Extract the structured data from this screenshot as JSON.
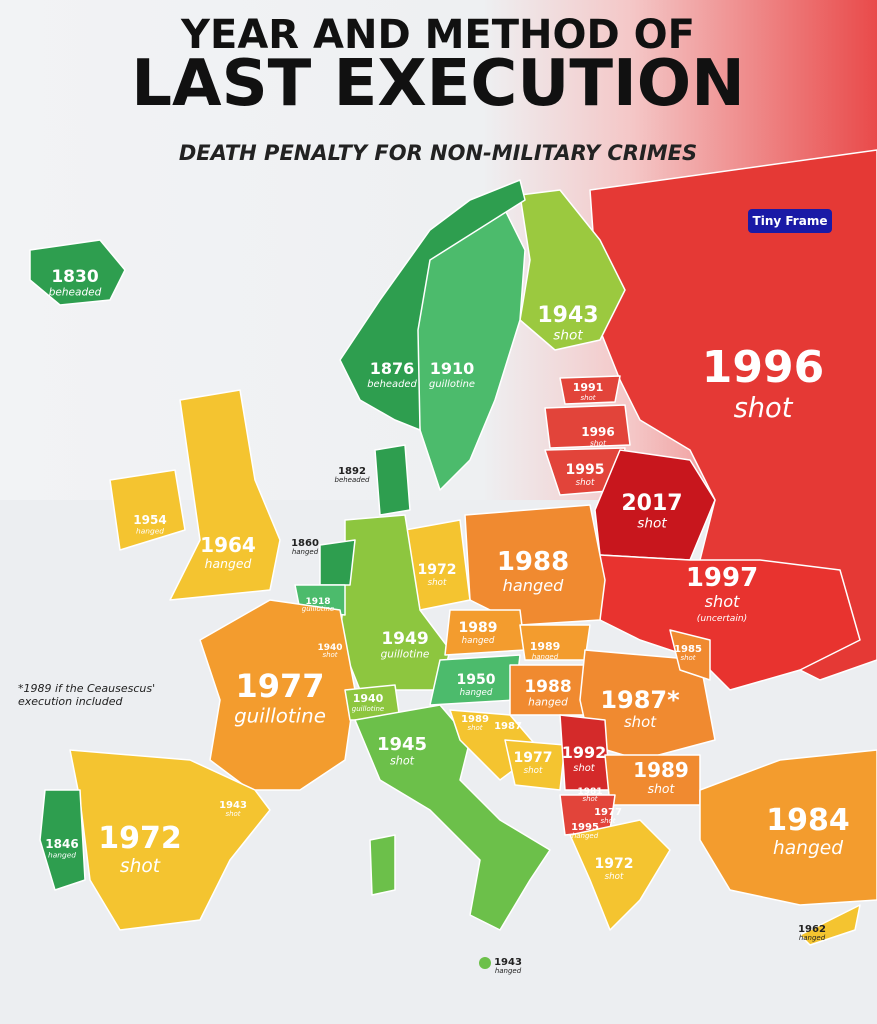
{
  "title_line1": "YEAR AND METHOD OF",
  "title_line2": "LAST EXECUTION",
  "subtitle": "DEATH PENALTY FOR NON-MILITARY CRIMES",
  "badge": "Tiny Frame",
  "footnote": "*1989 if the Ceausescus' execution included",
  "labels": [
    {
      "year": "1830",
      "method": "beheaded"
    },
    {
      "year": "1943",
      "method": "shot"
    },
    {
      "year": "1996",
      "method": "shot"
    },
    {
      "year": "1876",
      "method": "beheaded"
    },
    {
      "year": "1910",
      "method": "guillotine"
    },
    {
      "year": "1991",
      "method": "shot"
    },
    {
      "year": "1996",
      "method": "shot"
    },
    {
      "year": "1995",
      "method": "shot"
    },
    {
      "year": "1892",
      "method": "beheaded"
    },
    {
      "year": "2017",
      "method": "shot"
    },
    {
      "year": "1954",
      "method": "hanged"
    },
    {
      "year": "1964",
      "method": "hanged"
    },
    {
      "year": "1860",
      "method": "hanged"
    },
    {
      "year": "1972",
      "method": "shot"
    },
    {
      "year": "1988",
      "method": "hanged"
    },
    {
      "year": "1997",
      "method": "shot",
      "note": "(uncertain)"
    },
    {
      "year": "1918",
      "method": "guillotine"
    },
    {
      "year": "1940",
      "method": "shot"
    },
    {
      "year": "1949",
      "method": "guillotine"
    },
    {
      "year": "1989",
      "method": "hanged"
    },
    {
      "year": "1989",
      "method": "hanged"
    },
    {
      "year": "1985",
      "method": "shot"
    },
    {
      "year": "1977",
      "method": "guillotine"
    },
    {
      "year": "1940",
      "method": "guillotine"
    },
    {
      "year": "1950",
      "method": "hanged"
    },
    {
      "year": "1988",
      "method": "hanged"
    },
    {
      "year": "1987*",
      "method": "shot"
    },
    {
      "year": "1989",
      "method": "shot"
    },
    {
      "year": "1987"
    },
    {
      "year": "1945",
      "method": "shot"
    },
    {
      "year": "1977",
      "method": "shot"
    },
    {
      "year": "1992",
      "method": "shot"
    },
    {
      "year": "1989",
      "method": "shot"
    },
    {
      "year": "1981",
      "method": "shot"
    },
    {
      "year": "1977",
      "method": "shot"
    },
    {
      "year": "1995",
      "method": "hanged"
    },
    {
      "year": "1984",
      "method": "hanged"
    },
    {
      "year": "1943",
      "method": "shot"
    },
    {
      "year": "1846",
      "method": "hanged"
    },
    {
      "year": "1972",
      "method": "shot"
    },
    {
      "year": "1972",
      "method": "shot"
    },
    {
      "year": "1962",
      "method": "hanged"
    },
    {
      "year": "1943",
      "method": "hanged"
    }
  ]
}
